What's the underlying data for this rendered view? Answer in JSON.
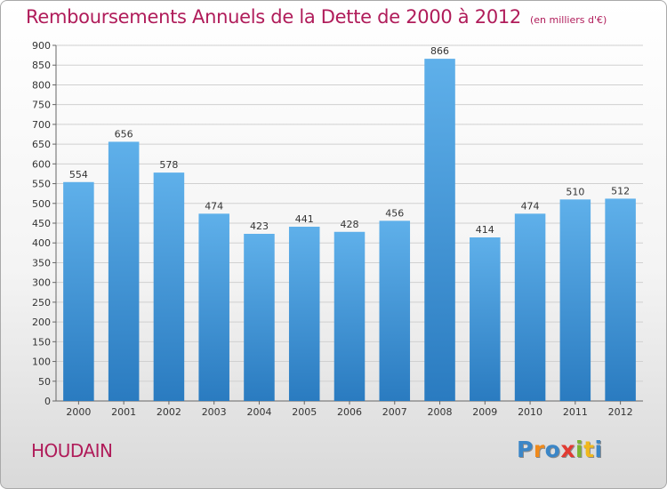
{
  "title": "Remboursements Annuels de la Dette de 2000 à 2012",
  "unit_note": "(en milliers d'€)",
  "location": "HOUDAIN",
  "logo": {
    "letters": [
      "P",
      "r",
      "o",
      "x",
      "i",
      "t",
      "i"
    ],
    "colors": [
      "#3b86c7",
      "#f08a1c",
      "#3b86c7",
      "#e23b32",
      "#7cb530",
      "#f0b81c",
      "#3b86c7"
    ]
  },
  "colors": {
    "bar": "#3d8fd4",
    "bar_light": "#5fb0ea",
    "title": "#b01c5a",
    "grid": "#d0d0d0"
  },
  "chart_data": {
    "type": "bar",
    "categories": [
      "2000",
      "2001",
      "2002",
      "2003",
      "2004",
      "2005",
      "2006",
      "2007",
      "2008",
      "2009",
      "2010",
      "2011",
      "2012"
    ],
    "values": [
      554,
      656,
      578,
      474,
      423,
      441,
      428,
      456,
      866,
      414,
      474,
      510,
      512
    ],
    "ylim": [
      0,
      900
    ],
    "ytick_step": 50,
    "grid": true,
    "data_labels": true
  }
}
